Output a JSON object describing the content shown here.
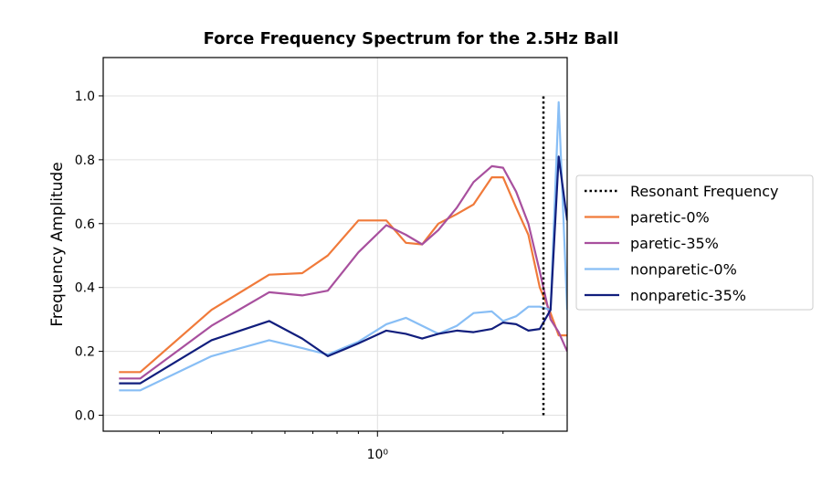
{
  "chart_data": {
    "type": "line",
    "title": "Force Frequency Spectrum for the 2.5Hz Ball",
    "xlabel": "",
    "ylabel": "Frequency Amplitude",
    "xscale": "log",
    "xlim": [
      0.22,
      2.85
    ],
    "ylim": [
      -0.05,
      1.12
    ],
    "yticks": [
      0.0,
      0.2,
      0.4,
      0.6,
      0.8,
      1.0
    ],
    "ytick_labels": [
      "0.0",
      "0.2",
      "0.4",
      "0.6",
      "0.8",
      "1.0"
    ],
    "xtick_label": "10⁰",
    "grid": true,
    "legend_position": "center-right outside",
    "resonant_frequency": {
      "name": "Resonant Frequency",
      "x": 2.5,
      "y_range": [
        0.0,
        1.0
      ],
      "color": "#000000",
      "style": "dotted"
    },
    "series": [
      {
        "name": "paretic-0%",
        "color": "#F07A3A",
        "x": [
          0.24,
          0.27,
          0.4,
          0.55,
          0.66,
          0.76,
          0.9,
          1.05,
          1.17,
          1.28,
          1.4,
          1.55,
          1.7,
          1.88,
          2.0,
          2.15,
          2.3,
          2.45,
          2.6,
          2.72,
          2.85
        ],
        "values": [
          0.135,
          0.135,
          0.33,
          0.44,
          0.445,
          0.5,
          0.61,
          0.61,
          0.54,
          0.535,
          0.6,
          0.63,
          0.66,
          0.745,
          0.745,
          0.65,
          0.565,
          0.4,
          0.32,
          0.25,
          0.25
        ]
      },
      {
        "name": "paretic-35%",
        "color": "#A8509E",
        "x": [
          0.24,
          0.27,
          0.4,
          0.55,
          0.66,
          0.76,
          0.9,
          1.05,
          1.17,
          1.28,
          1.4,
          1.55,
          1.7,
          1.88,
          2.0,
          2.15,
          2.3,
          2.45,
          2.6,
          2.72,
          2.85
        ],
        "values": [
          0.115,
          0.115,
          0.28,
          0.385,
          0.375,
          0.39,
          0.51,
          0.595,
          0.565,
          0.535,
          0.58,
          0.65,
          0.73,
          0.78,
          0.775,
          0.7,
          0.6,
          0.45,
          0.3,
          0.26,
          0.2
        ]
      },
      {
        "name": "nonparetic-0%",
        "color": "#88BEF5",
        "x": [
          0.24,
          0.27,
          0.4,
          0.55,
          0.66,
          0.76,
          0.9,
          1.05,
          1.17,
          1.28,
          1.4,
          1.55,
          1.7,
          1.88,
          2.0,
          2.15,
          2.3,
          2.45,
          2.6,
          2.72,
          2.85
        ],
        "values": [
          0.078,
          0.078,
          0.185,
          0.235,
          0.21,
          0.19,
          0.23,
          0.285,
          0.305,
          0.28,
          0.255,
          0.28,
          0.32,
          0.325,
          0.295,
          0.31,
          0.34,
          0.34,
          0.33,
          0.98,
          0.33
        ]
      },
      {
        "name": "nonparetic-35%",
        "color": "#111E7D",
        "x": [
          0.24,
          0.27,
          0.4,
          0.55,
          0.66,
          0.76,
          0.9,
          1.05,
          1.17,
          1.28,
          1.4,
          1.55,
          1.7,
          1.88,
          2.0,
          2.15,
          2.3,
          2.45,
          2.6,
          2.72,
          2.85
        ],
        "values": [
          0.1,
          0.1,
          0.235,
          0.295,
          0.24,
          0.185,
          0.225,
          0.265,
          0.255,
          0.24,
          0.255,
          0.265,
          0.26,
          0.27,
          0.29,
          0.285,
          0.265,
          0.27,
          0.33,
          0.81,
          0.61
        ]
      }
    ]
  }
}
